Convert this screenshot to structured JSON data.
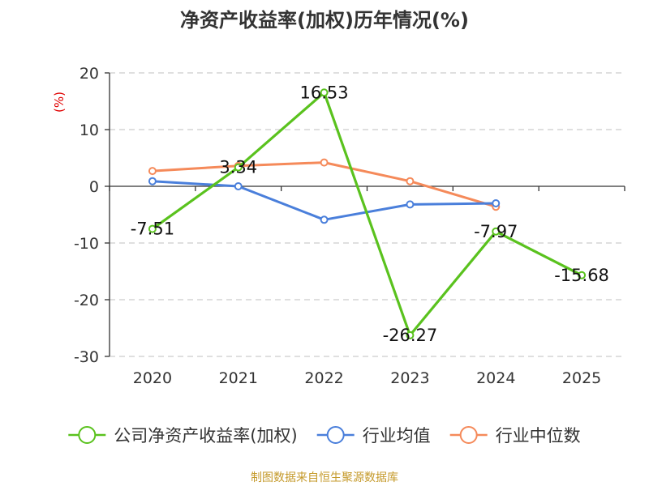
{
  "chart_data": {
    "type": "line",
    "title": "净资产收益率(加权)历年情况(%)",
    "ylabel": "(%)",
    "xlabel": "",
    "categories": [
      "2020",
      "2021",
      "2022",
      "2023",
      "2024",
      "2025"
    ],
    "ylim": [
      -30,
      20
    ],
    "yticks": [
      20,
      10,
      0,
      -10,
      -20,
      -30
    ],
    "grid": true,
    "legend_position": "bottom",
    "series": [
      {
        "name": "公司净资产收益率(加权)",
        "color": "#5ac21e",
        "values": [
          -7.51,
          3.34,
          16.53,
          -26.27,
          -7.97,
          -15.68
        ],
        "labels": [
          "-7.51",
          "3.34",
          "16.53",
          "-26.27",
          "-7.97",
          "-15.68"
        ]
      },
      {
        "name": "行业均值",
        "color": "#4a7fdb",
        "values": [
          0.9,
          0.0,
          -5.9,
          -3.2,
          -3.0,
          null
        ]
      },
      {
        "name": "行业中位数",
        "color": "#f58a5a",
        "values": [
          2.7,
          3.6,
          4.2,
          0.9,
          -3.6,
          null
        ]
      }
    ]
  },
  "source": "制图数据来自恒生聚源数据库"
}
